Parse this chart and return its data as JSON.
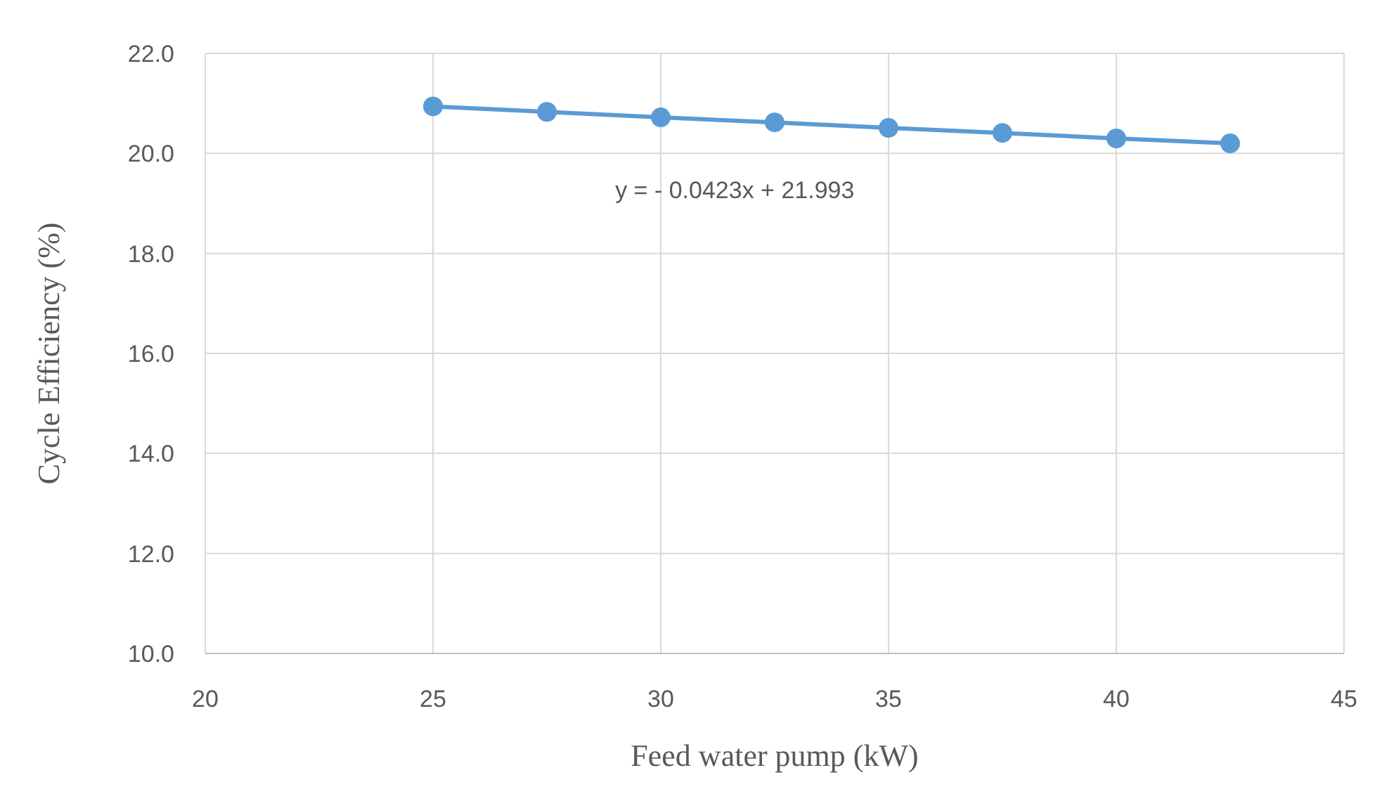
{
  "chart_data": {
    "type": "line",
    "xlabel": "Feed water pump (kW)",
    "ylabel": "Cycle Efficiency (%)",
    "x": [
      25,
      27.5,
      30,
      32.5,
      35,
      37.5,
      40,
      42.5
    ],
    "series": [
      {
        "color": "#5b9bd5",
        "values": [
          20.94,
          20.83,
          20.72,
          20.62,
          20.51,
          20.41,
          20.3,
          20.2
        ]
      }
    ],
    "xlim": [
      20,
      45
    ],
    "xticks": [
      20,
      25,
      30,
      35,
      40,
      45
    ],
    "ylim": [
      10,
      22
    ],
    "yticks": [
      {
        "value": 10,
        "label": "10.0"
      },
      {
        "value": 12,
        "label": "12.0"
      },
      {
        "value": 14,
        "label": "14.0"
      },
      {
        "value": 16,
        "label": "16.0"
      },
      {
        "value": 18,
        "label": "18.0"
      },
      {
        "value": 20,
        "label": "20.0"
      },
      {
        "value": 22,
        "label": "22.0"
      }
    ],
    "grid": true,
    "marker": "circle",
    "line_style": "solid",
    "annotations": [
      "y =  - 0.0423x + 21.993"
    ]
  }
}
